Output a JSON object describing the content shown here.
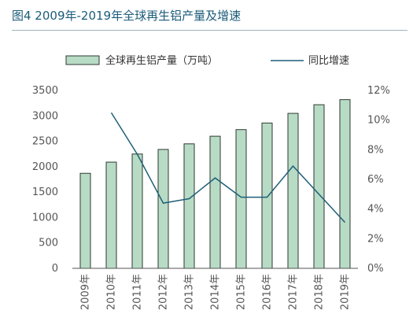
{
  "title": "图4 2009年-2019年全球再生铝产量及增速",
  "chart_data": {
    "type": "bar",
    "categories": [
      "2009年",
      "2010年",
      "2011年",
      "2012年",
      "2013年",
      "2014年",
      "2015年",
      "2016年",
      "2017年",
      "2018年",
      "2019年"
    ],
    "series": [
      {
        "name": "全球再生铝产量（万吨）",
        "type": "bar",
        "axis": "left",
        "values": [
          1870,
          2090,
          2250,
          2340,
          2450,
          2600,
          2730,
          2860,
          3050,
          3220,
          3320
        ]
      },
      {
        "name": "同比增速",
        "type": "line",
        "axis": "right",
        "values": [
          null,
          10.5,
          7.7,
          4.4,
          4.7,
          6.1,
          4.8,
          4.8,
          6.9,
          null,
          3.1
        ]
      }
    ],
    "y_left": {
      "ticks": [
        "0",
        "500",
        "1000",
        "1500",
        "2000",
        "2500",
        "3000",
        "3500"
      ],
      "lim": [
        0,
        3500
      ]
    },
    "y_right": {
      "ticks": [
        "0%",
        "2%",
        "4%",
        "6%",
        "8%",
        "10%",
        "12%"
      ],
      "lim": [
        0,
        12
      ]
    },
    "legend": "top",
    "grid": false,
    "colors": {
      "bar_fill": "#b8dbc5",
      "bar_stroke": "#2d3a32",
      "line": "#1f5f78",
      "title": "#1b5b7a"
    }
  }
}
